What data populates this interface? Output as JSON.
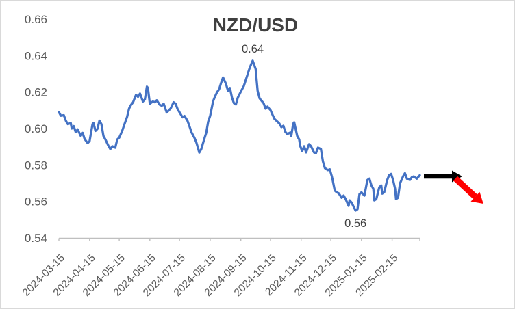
{
  "frame": {
    "background": "#FFFFFF",
    "border_color": "#D9D9D9"
  },
  "styles": {
    "title_color": "#404040",
    "axis_text_color": "#595959",
    "axis_line_color": "#BFBFBF",
    "annotation_color": "#404040",
    "series_color": "#4472C4",
    "flat_arrow_color": "#000000",
    "down_arrow_color": "#FF0000"
  },
  "chart_data": {
    "type": "line",
    "title": "NZD/USD",
    "xlabel": "",
    "ylabel": "",
    "grid": false,
    "legend": "none",
    "ylim": [
      0.54,
      0.66
    ],
    "y_ticks": [
      0.54,
      0.56,
      0.58,
      0.6,
      0.62,
      0.64,
      0.66
    ],
    "y_tick_labels": [
      "0.54",
      "0.56",
      "0.58",
      "0.60",
      "0.62",
      "0.64",
      "0.66"
    ],
    "x_range": [
      "2024-03-15",
      "2025-03-15"
    ],
    "x_tick_labels": [
      "2024-03-15",
      "2024-04-15",
      "2024-05-15",
      "2024-06-15",
      "2024-07-15",
      "2024-08-15",
      "2024-09-15",
      "2024-10-15",
      "2024-11-15",
      "2024-12-15",
      "2025-01-15",
      "2025-02-15"
    ],
    "annotations": [
      {
        "text": "0.64",
        "at": "max"
      },
      {
        "text": "0.56",
        "at": "min"
      }
    ],
    "arrows": [
      {
        "name": "flat-trend-arrow",
        "color": "#000000",
        "direction": "right"
      },
      {
        "name": "down-trend-arrow",
        "color": "#FF0000",
        "direction": "down-right"
      }
    ],
    "series": [
      {
        "name": "NZD/USD",
        "color": "#4472C4",
        "points": [
          [
            "2024-03-15",
            0.609
          ],
          [
            "2024-03-17",
            0.607
          ],
          [
            "2024-03-20",
            0.6073
          ],
          [
            "2024-03-22",
            0.6043
          ],
          [
            "2024-03-24",
            0.6024
          ],
          [
            "2024-03-27",
            0.603
          ],
          [
            "2024-03-28",
            0.6
          ],
          [
            "2024-03-30",
            0.6013
          ],
          [
            "2024-04-01",
            0.598
          ],
          [
            "2024-04-03",
            0.5995
          ],
          [
            "2024-04-06",
            0.596
          ],
          [
            "2024-04-08",
            0.5976
          ],
          [
            "2024-04-10",
            0.5943
          ],
          [
            "2024-04-13",
            0.592
          ],
          [
            "2024-04-15",
            0.5931
          ],
          [
            "2024-04-18",
            0.6024
          ],
          [
            "2024-04-19",
            0.603
          ],
          [
            "2024-04-21",
            0.5987
          ],
          [
            "2024-04-23",
            0.5998
          ],
          [
            "2024-04-25",
            0.6043
          ],
          [
            "2024-04-27",
            0.6024
          ],
          [
            "2024-04-29",
            0.596
          ],
          [
            "2024-05-01",
            0.594
          ],
          [
            "2024-05-04",
            0.5906
          ],
          [
            "2024-05-06",
            0.5887
          ],
          [
            "2024-05-08",
            0.5903
          ],
          [
            "2024-05-11",
            0.5895
          ],
          [
            "2024-05-13",
            0.594
          ],
          [
            "2024-05-15",
            0.595
          ],
          [
            "2024-05-18",
            0.5987
          ],
          [
            "2024-05-20",
            0.6019
          ],
          [
            "2024-05-23",
            0.6064
          ],
          [
            "2024-05-25",
            0.611
          ],
          [
            "2024-05-27",
            0.613
          ],
          [
            "2024-05-29",
            0.6144
          ],
          [
            "2024-06-01",
            0.6185
          ],
          [
            "2024-06-03",
            0.6174
          ],
          [
            "2024-06-05",
            0.6192
          ],
          [
            "2024-06-08",
            0.6148
          ],
          [
            "2024-06-10",
            0.616
          ],
          [
            "2024-06-12",
            0.623
          ],
          [
            "2024-06-13",
            0.6223
          ],
          [
            "2024-06-15",
            0.6136
          ],
          [
            "2024-06-18",
            0.6148
          ],
          [
            "2024-06-20",
            0.6144
          ],
          [
            "2024-06-22",
            0.6155
          ],
          [
            "2024-06-25",
            0.613
          ],
          [
            "2024-06-27",
            0.6125
          ],
          [
            "2024-06-29",
            0.6136
          ],
          [
            "2024-07-02",
            0.6088
          ],
          [
            "2024-07-04",
            0.6099
          ],
          [
            "2024-07-06",
            0.611
          ],
          [
            "2024-07-09",
            0.6144
          ],
          [
            "2024-07-11",
            0.6136
          ],
          [
            "2024-07-13",
            0.6107
          ],
          [
            "2024-07-16",
            0.608
          ],
          [
            "2024-07-18",
            0.6062
          ],
          [
            "2024-07-20",
            0.6069
          ],
          [
            "2024-07-23",
            0.6043
          ],
          [
            "2024-07-25",
            0.6013
          ],
          [
            "2024-07-27",
            0.598
          ],
          [
            "2024-07-30",
            0.595
          ],
          [
            "2024-08-01",
            0.5924
          ],
          [
            "2024-08-03",
            0.5887
          ],
          [
            "2024-08-04",
            0.5868
          ],
          [
            "2024-08-06",
            0.5887
          ],
          [
            "2024-08-09",
            0.5942
          ],
          [
            "2024-08-11",
            0.5976
          ],
          [
            "2024-08-13",
            0.6038
          ],
          [
            "2024-08-15",
            0.607
          ],
          [
            "2024-08-18",
            0.615
          ],
          [
            "2024-08-20",
            0.6177
          ],
          [
            "2024-08-22",
            0.62
          ],
          [
            "2024-08-24",
            0.6215
          ],
          [
            "2024-08-26",
            0.625
          ],
          [
            "2024-08-28",
            0.628
          ],
          [
            "2024-08-31",
            0.6245
          ],
          [
            "2024-09-02",
            0.6207
          ],
          [
            "2024-09-04",
            0.6222
          ],
          [
            "2024-09-06",
            0.617
          ],
          [
            "2024-09-08",
            0.6139
          ],
          [
            "2024-09-10",
            0.6132
          ],
          [
            "2024-09-12",
            0.617
          ],
          [
            "2024-09-15",
            0.6203
          ],
          [
            "2024-09-18",
            0.6233
          ],
          [
            "2024-09-22",
            0.63
          ],
          [
            "2024-09-24",
            0.6334
          ],
          [
            "2024-09-27",
            0.6372
          ],
          [
            "2024-09-30",
            0.6327
          ],
          [
            "2024-10-01",
            0.6263
          ],
          [
            "2024-10-02",
            0.6207
          ],
          [
            "2024-10-04",
            0.6165
          ],
          [
            "2024-10-08",
            0.6139
          ],
          [
            "2024-10-10",
            0.6109
          ],
          [
            "2024-10-12",
            0.612
          ],
          [
            "2024-10-15",
            0.6101
          ],
          [
            "2024-10-17",
            0.6076
          ],
          [
            "2024-10-19",
            0.6053
          ],
          [
            "2024-10-22",
            0.6038
          ],
          [
            "2024-10-24",
            0.6027
          ],
          [
            "2024-10-26",
            0.6008
          ],
          [
            "2024-10-28",
            0.6015
          ],
          [
            "2024-10-30",
            0.5982
          ],
          [
            "2024-11-01",
            0.597
          ],
          [
            "2024-11-04",
            0.5978
          ],
          [
            "2024-11-05",
            0.5959
          ],
          [
            "2024-11-07",
            0.6027
          ],
          [
            "2024-11-08",
            0.6034
          ],
          [
            "2024-11-09",
            0.6008
          ],
          [
            "2024-11-11",
            0.5959
          ],
          [
            "2024-11-13",
            0.594
          ],
          [
            "2024-11-14",
            0.5905
          ],
          [
            "2024-11-16",
            0.5876
          ],
          [
            "2024-11-18",
            0.5903
          ],
          [
            "2024-11-20",
            0.5869
          ],
          [
            "2024-11-23",
            0.5914
          ],
          [
            "2024-11-25",
            0.5903
          ],
          [
            "2024-11-28",
            0.5869
          ],
          [
            "2024-11-30",
            0.5865
          ],
          [
            "2024-12-02",
            0.5895
          ],
          [
            "2024-12-05",
            0.5888
          ],
          [
            "2024-12-07",
            0.582
          ],
          [
            "2024-12-09",
            0.5783
          ],
          [
            "2024-12-12",
            0.5772
          ],
          [
            "2024-12-14",
            0.5776
          ],
          [
            "2024-12-16",
            0.5738
          ],
          [
            "2024-12-17",
            0.5715
          ],
          [
            "2024-12-19",
            0.566
          ],
          [
            "2024-12-21",
            0.565
          ],
          [
            "2024-12-23",
            0.5645
          ],
          [
            "2024-12-26",
            0.562
          ],
          [
            "2024-12-28",
            0.5632
          ],
          [
            "2024-12-30",
            0.5613
          ],
          [
            "2025-01-02",
            0.5576
          ],
          [
            "2025-01-03",
            0.5606
          ],
          [
            "2025-01-05",
            0.5594
          ],
          [
            "2025-01-09",
            0.555
          ],
          [
            "2025-01-11",
            0.5557
          ],
          [
            "2025-01-13",
            0.564
          ],
          [
            "2025-01-15",
            0.565
          ],
          [
            "2025-01-18",
            0.5632
          ],
          [
            "2025-01-21",
            0.5718
          ],
          [
            "2025-01-23",
            0.5725
          ],
          [
            "2025-01-25",
            0.5688
          ],
          [
            "2025-01-27",
            0.567
          ],
          [
            "2025-01-28",
            0.5606
          ],
          [
            "2025-01-30",
            0.5613
          ],
          [
            "2025-02-02",
            0.5677
          ],
          [
            "2025-02-04",
            0.5688
          ],
          [
            "2025-02-05",
            0.5643
          ],
          [
            "2025-02-07",
            0.565
          ],
          [
            "2025-02-10",
            0.5718
          ],
          [
            "2025-02-12",
            0.5744
          ],
          [
            "2025-02-14",
            0.5751
          ],
          [
            "2025-02-16",
            0.5718
          ],
          [
            "2025-02-18",
            0.567
          ],
          [
            "2025-02-19",
            0.5613
          ],
          [
            "2025-02-21",
            0.562
          ],
          [
            "2025-02-23",
            0.5699
          ],
          [
            "2025-02-26",
            0.5737
          ],
          [
            "2025-02-28",
            0.5755
          ],
          [
            "2025-03-02",
            0.5725
          ],
          [
            "2025-03-05",
            0.5718
          ],
          [
            "2025-03-07",
            0.5733
          ],
          [
            "2025-03-09",
            0.5737
          ],
          [
            "2025-03-12",
            0.5725
          ],
          [
            "2025-03-15",
            0.5744
          ]
        ]
      }
    ]
  }
}
